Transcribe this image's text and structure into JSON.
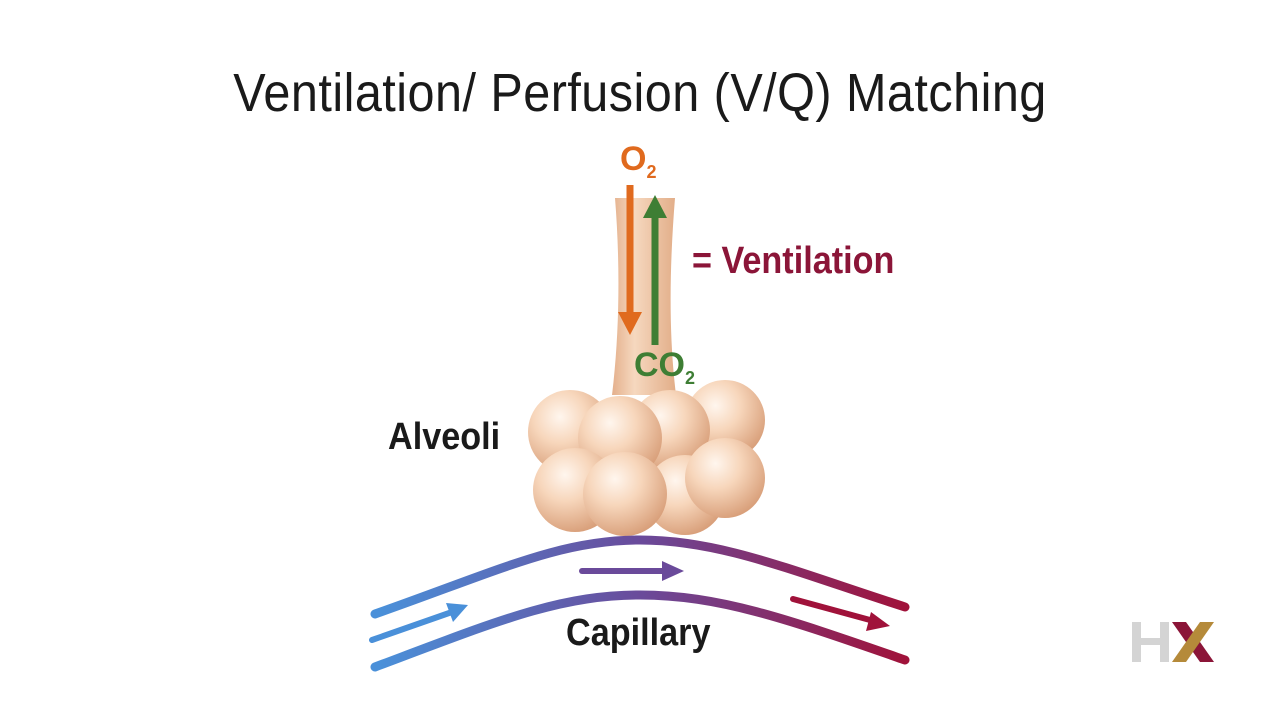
{
  "title": "Ventilation/ Perfusion (V/Q) Matching",
  "labels": {
    "ventilation": "= Ventilation",
    "alveoli": "Alveoli",
    "capillary": "Capillary"
  },
  "gases": {
    "o2": {
      "main": "O",
      "sub": "2"
    },
    "co2": {
      "main": "CO",
      "sub": "2"
    }
  },
  "colors": {
    "o2_arrow": "#e06a1e",
    "co2_arrow": "#3e7e34",
    "ventilation_text": "#8b1538",
    "capillary_start": "#4a90d9",
    "capillary_end": "#a0123a",
    "alveolus": "#f5c9a6",
    "airway": "#efc39f"
  },
  "logo": {
    "icon": "hx-logo-icon"
  }
}
